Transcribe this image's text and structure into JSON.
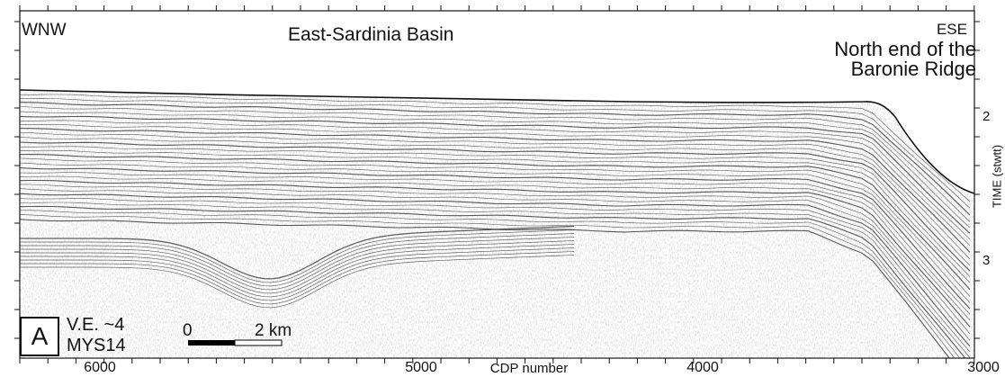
{
  "labels": {
    "left_direction": "WNW",
    "right_direction": "ESE",
    "basin": "East-Sardinia Basin",
    "ridge_line1": "North end of the",
    "ridge_line2": "Baronie Ridge",
    "panel": "A",
    "vertical_exaggeration": "V.E. ~4",
    "profile_id": "MYS14",
    "scale_start": "0",
    "scale_end": "2 km"
  },
  "x_axis": {
    "label": "CDP number",
    "ticks": [
      "6000",
      "5000",
      "4000",
      "3000"
    ]
  },
  "y_axis": {
    "label": "TIME (stwtt)",
    "ticks": [
      "2",
      "3"
    ]
  },
  "colors": {
    "reflector": "#222222",
    "background": "#ffffff",
    "scale_bar_dark": "#000000"
  }
}
